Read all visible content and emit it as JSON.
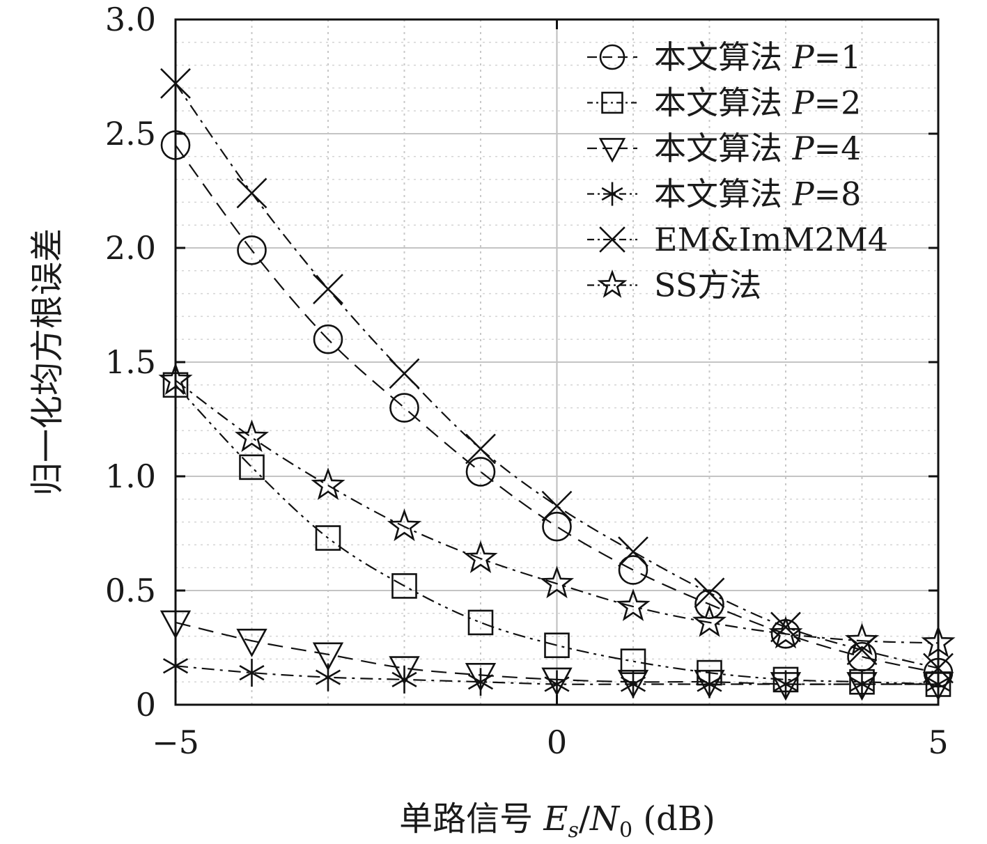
{
  "chart_data": {
    "type": "line",
    "title": "",
    "xlabel": "单路信号 Es/N0 (dB)",
    "xlabel_parts": {
      "prefix": "单路信号 ",
      "E": "E",
      "s": "s",
      "slash": "/",
      "N": "N",
      "zero": "0",
      "suffix": " (dB)"
    },
    "ylabel": "归一化均方根误差",
    "xlim": [
      -5,
      5
    ],
    "ylim": [
      0,
      3
    ],
    "xticks": [
      -5,
      0,
      5
    ],
    "xtick_labels": [
      "−5",
      "0",
      "5"
    ],
    "yticks": [
      0,
      0.5,
      1.0,
      1.5,
      2.0,
      2.5,
      3.0
    ],
    "ytick_labels": [
      "0",
      "0.5",
      "1.0",
      "1.5",
      "2.0",
      "2.5",
      "3.0"
    ],
    "grid": true,
    "legend_position": "top-right",
    "x": [
      -5,
      -4,
      -3,
      -2,
      -1,
      0,
      1,
      2,
      3,
      4,
      5
    ],
    "series": [
      {
        "name": "本文算法 P=1",
        "marker": "circle",
        "dash": "dashed",
        "values": [
          2.45,
          1.99,
          1.6,
          1.3,
          1.02,
          0.78,
          0.59,
          0.44,
          0.31,
          0.21,
          0.14
        ]
      },
      {
        "name": "本文算法 P=2",
        "marker": "square",
        "dash": "dashdotdot",
        "values": [
          1.4,
          1.04,
          0.73,
          0.52,
          0.36,
          0.26,
          0.19,
          0.14,
          0.11,
          0.1,
          0.09
        ]
      },
      {
        "name": "本文算法 P=4",
        "marker": "triangle-down",
        "dash": "dashed",
        "values": [
          0.36,
          0.28,
          0.22,
          0.16,
          0.13,
          0.11,
          0.1,
          0.1,
          0.09,
          0.09,
          0.09
        ]
      },
      {
        "name": "本文算法 P=8",
        "marker": "asterisk",
        "dash": "dashdot",
        "values": [
          0.17,
          0.14,
          0.12,
          0.11,
          0.1,
          0.09,
          0.09,
          0.09,
          0.09,
          0.09,
          0.09
        ]
      },
      {
        "name": "EM&ImM2M4",
        "marker": "x",
        "dash": "dashdot",
        "values": [
          2.72,
          2.24,
          1.82,
          1.45,
          1.12,
          0.87,
          0.67,
          0.49,
          0.34,
          0.24,
          0.16
        ]
      },
      {
        "name": "SS方法",
        "marker": "star",
        "dash": "dashdot",
        "values": [
          1.42,
          1.17,
          0.96,
          0.78,
          0.64,
          0.53,
          0.43,
          0.36,
          0.31,
          0.28,
          0.27
        ]
      }
    ]
  }
}
